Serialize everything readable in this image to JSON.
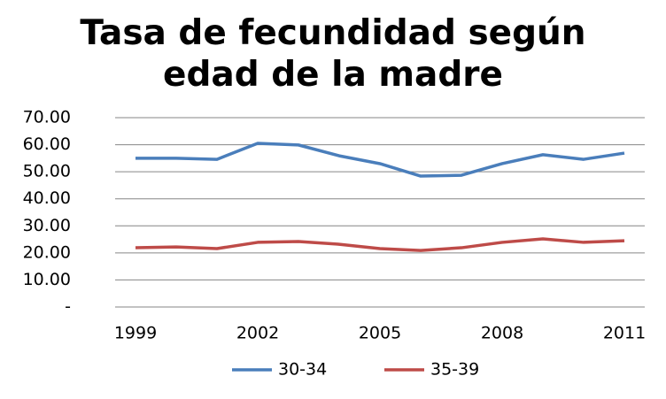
{
  "chart_data": {
    "type": "line",
    "title": "Tasa de fecundidad según edad de la madre",
    "x": [
      1999,
      2000,
      2001,
      2002,
      2003,
      2004,
      2005,
      2006,
      2007,
      2008,
      2009,
      2010,
      2011
    ],
    "xlim": [
      1999,
      2011
    ],
    "xticks": [
      1999,
      2002,
      2005,
      2008,
      2011
    ],
    "ylim": [
      0,
      70
    ],
    "yticks": [
      {
        "value": 0,
        "label": "-"
      },
      {
        "value": 10,
        "label": "10.00"
      },
      {
        "value": 20,
        "label": "20.00"
      },
      {
        "value": 30,
        "label": "30.00"
      },
      {
        "value": 40,
        "label": "40.00"
      },
      {
        "value": 50,
        "label": "50.00"
      },
      {
        "value": 60,
        "label": "60.00"
      },
      {
        "value": 70,
        "label": "70.00"
      }
    ],
    "grid": true,
    "legend": "bottom",
    "series": [
      {
        "name": "30-34",
        "color": "#4a7ebb",
        "values": [
          55.0,
          55.0,
          54.6,
          60.5,
          59.9,
          55.9,
          53.0,
          48.4,
          48.7,
          53.0,
          56.3,
          54.6,
          56.9
        ]
      },
      {
        "name": "35-39",
        "color": "#be4b48",
        "values": [
          21.9,
          22.2,
          21.6,
          23.9,
          24.2,
          23.2,
          21.6,
          20.9,
          21.9,
          23.9,
          25.2,
          23.9,
          24.5
        ]
      }
    ]
  }
}
